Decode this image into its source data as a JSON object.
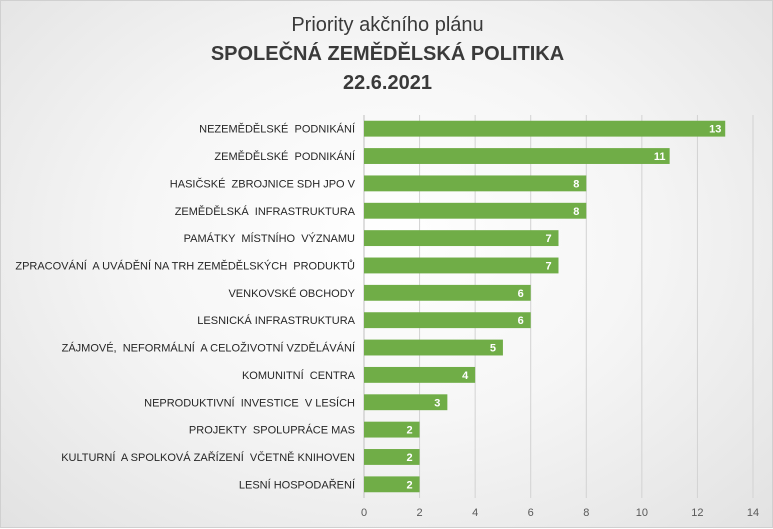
{
  "chart_data": {
    "type": "bar",
    "orientation": "horizontal",
    "title": "Priority akčního plánu",
    "subtitle": "SPOLEČNÁ ZEMĚDĚLSKÁ POLITIKA",
    "date": "22.6.2021",
    "xlabel": "",
    "ylabel": "",
    "xlim": [
      0,
      14
    ],
    "x_ticks": [
      "0",
      "2",
      "4",
      "6",
      "8",
      "10",
      "12",
      "14"
    ],
    "grid": true,
    "legend": "none",
    "bar_color": "#70ad47",
    "categories": [
      "NEZEMĚDĚLSKÉ  PODNIKÁNÍ",
      "ZEMĚDĚLSKÉ  PODNIKÁNÍ",
      "HASIČSKÉ  ZBROJNICE SDH JPO V",
      "ZEMĚDĚLSKÁ  INFRASTRUKTURA",
      "PAMÁTKY  MÍSTNÍHO  VÝZNAMU",
      "ZPRACOVÁNÍ  A UVÁDĚNÍ NA TRH ZEMĚDĚLSKÝCH  PRODUKTŮ",
      "VENKOVSKÉ OBCHODY",
      "LESNICKÁ INFRASTRUKTURA",
      "ZÁJMOVÉ,  NEFORMÁLNÍ  A CELOŽIVOTNÍ VZDĚLÁVÁNÍ",
      "KOMUNITNÍ  CENTRA",
      "NEPRODUKTIVNÍ  INVESTICE  V LESÍCH",
      "PROJEKTY  SPOLUPRÁCE MAS",
      "KULTURNÍ  A SPOLKOVÁ ZAŘÍZENÍ  VČETNĚ KNIHOVEN",
      "LESNÍ HOSPODAŘENÍ"
    ],
    "values": [
      13,
      11,
      8,
      8,
      7,
      7,
      6,
      6,
      5,
      4,
      3,
      2,
      2,
      2
    ],
    "data_labels": [
      "13",
      "11",
      "8",
      "8",
      "7",
      "7",
      "6",
      "6",
      "5",
      "4",
      "3",
      "2",
      "2",
      "2"
    ]
  }
}
